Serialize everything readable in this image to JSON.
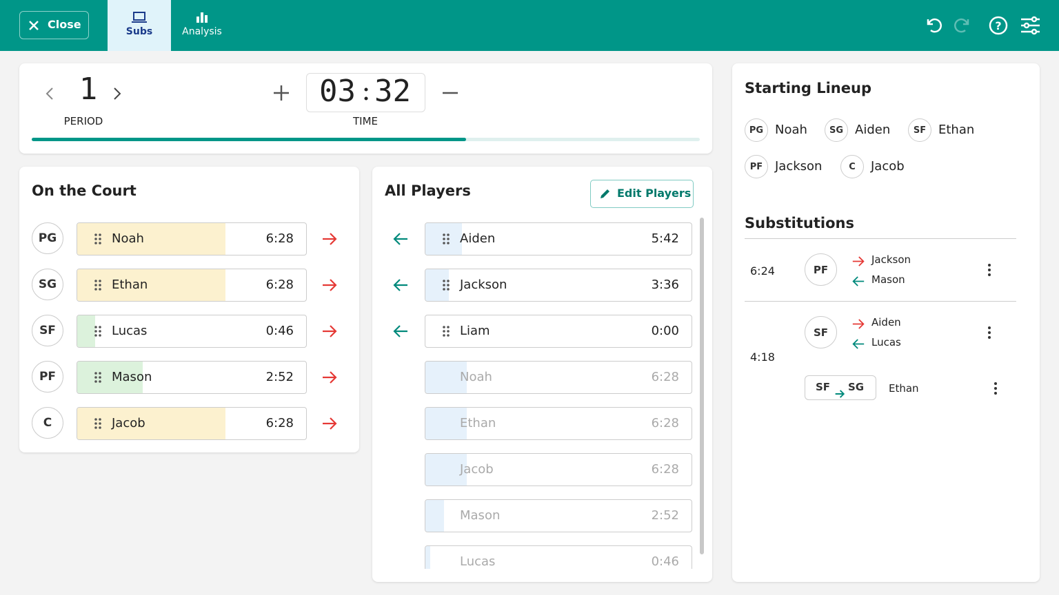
{
  "toolbar": {
    "close": "Close",
    "tabs": [
      "Subs",
      "Analysis"
    ]
  },
  "clock": {
    "period": "1",
    "period_label": "PERIOD",
    "minutes": "03",
    "seconds": "32",
    "time_label": "TIME"
  },
  "on_court": {
    "title": "On the Court",
    "players": [
      {
        "position": "PG",
        "name": "Noah",
        "time": "6:28",
        "color": "#fcf1cf"
      },
      {
        "position": "SG",
        "name": "Ethan",
        "time": "6:28",
        "color": "#fcf1cf"
      },
      {
        "position": "SF",
        "name": "Lucas",
        "time": "0:46",
        "color": "#dcf2dc"
      },
      {
        "position": "PF",
        "name": "Mason",
        "time": "2:52",
        "color": "#dcf2dc"
      },
      {
        "position": "C",
        "name": "Jacob",
        "time": "6:28",
        "color": "#fcf1cf"
      }
    ]
  },
  "all_players": {
    "title": "All Players",
    "edit": "Edit Players",
    "players": [
      {
        "name": "Aiden",
        "time": "5:42",
        "faded": false
      },
      {
        "name": "Jackson",
        "time": "3:36",
        "faded": false
      },
      {
        "name": "Liam",
        "time": "0:00",
        "faded": false
      },
      {
        "name": "Noah",
        "time": "6:28",
        "faded": true
      },
      {
        "name": "Ethan",
        "time": "6:28",
        "faded": true
      },
      {
        "name": "Jacob",
        "time": "6:28",
        "faded": true
      },
      {
        "name": "Mason",
        "time": "2:52",
        "faded": true
      },
      {
        "name": "Lucas",
        "time": "0:46",
        "faded": true
      }
    ]
  },
  "starting_lineup": {
    "title": "Starting Lineup",
    "players": [
      {
        "position": "PG",
        "name": "Noah"
      },
      {
        "position": "SG",
        "name": "Aiden"
      },
      {
        "position": "SF",
        "name": "Ethan"
      },
      {
        "position": "PF",
        "name": "Jackson"
      },
      {
        "position": "C",
        "name": "Jacob"
      }
    ]
  },
  "substitutions": {
    "title": "Substitutions",
    "entries": [
      {
        "time": "6:24",
        "position": "PF",
        "out": "Jackson",
        "in": "Mason"
      },
      {
        "time": "4:18",
        "position": "SF",
        "out": "Aiden",
        "in": "Lucas",
        "swap": {
          "from": "SF",
          "to": "SG",
          "player": "Ethan"
        }
      }
    ]
  }
}
